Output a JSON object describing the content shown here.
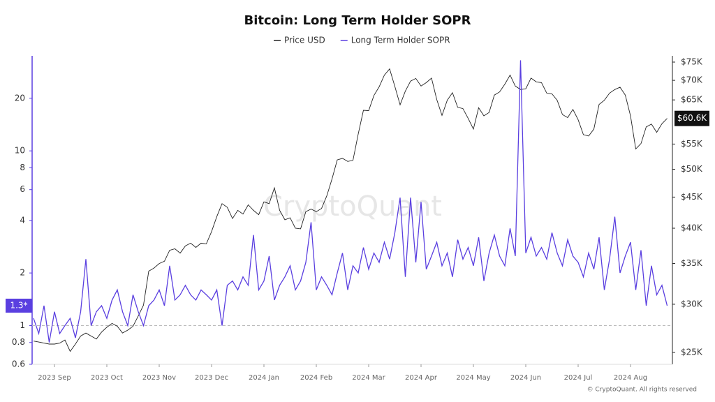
{
  "chart_data": {
    "type": "line",
    "title": "Bitcoin: Long Term Holder SOPR",
    "watermark": "CryptoQuant",
    "footer": "© CryptoQuant. All rights reserved",
    "categories": [
      null,
      null,
      null,
      null,
      "2023 Sep",
      null,
      null,
      null,
      null,
      null,
      null,
      null,
      null,
      null,
      "2023 Oct",
      null,
      null,
      null,
      null,
      null,
      null,
      null,
      null,
      null,
      "2023 Nov",
      null,
      null,
      null,
      null,
      null,
      null,
      null,
      null,
      null,
      "2023 Dec",
      null,
      null,
      null,
      null,
      null,
      null,
      null,
      null,
      null,
      "2024 Jan",
      null,
      null,
      null,
      null,
      null,
      null,
      null,
      null,
      null,
      "2024 Feb",
      null,
      null,
      null,
      null,
      null,
      null,
      null,
      null,
      null,
      "2024 Mar",
      null,
      null,
      null,
      null,
      null,
      null,
      null,
      null,
      null,
      "2024 Apr",
      null,
      null,
      null,
      null,
      null,
      null,
      null,
      null,
      null,
      "2024 May",
      null,
      null,
      null,
      null,
      null,
      null,
      null,
      null,
      null,
      "2024 Jun",
      null,
      null,
      null,
      null,
      null,
      null,
      null,
      null,
      null,
      "2024 Jul",
      null,
      null,
      null,
      null,
      null,
      null,
      null,
      null,
      null,
      "2024 Aug",
      null,
      null,
      null,
      null,
      null,
      null,
      null
    ],
    "series": [
      {
        "name": "Price USD",
        "color": "#222222",
        "axis": "y2",
        "last_label": "$60.6K",
        "values": [
          26100,
          26000,
          25900,
          25800,
          25800,
          25900,
          26200,
          25100,
          25800,
          26600,
          26900,
          26600,
          26300,
          27000,
          27500,
          27900,
          27600,
          26900,
          27200,
          27600,
          28700,
          29900,
          34000,
          34400,
          35000,
          35300,
          36800,
          37000,
          36400,
          37400,
          37800,
          37200,
          37800,
          37700,
          39500,
          41800,
          43900,
          43300,
          41500,
          42800,
          42200,
          43700,
          42800,
          42100,
          44200,
          43900,
          46600,
          42800,
          41300,
          41600,
          40000,
          39900,
          42600,
          43000,
          42600,
          43100,
          45200,
          48200,
          51800,
          52100,
          51500,
          51700,
          57100,
          62500,
          62400,
          66100,
          68300,
          71400,
          73100,
          68400,
          63800,
          67200,
          69800,
          70500,
          68500,
          69400,
          70600,
          65100,
          61300,
          64900,
          66800,
          63200,
          62900,
          60600,
          58200,
          63100,
          61200,
          62000,
          66200,
          67000,
          69000,
          71400,
          68500,
          67600,
          67800,
          70600,
          69600,
          69400,
          66700,
          66500,
          64900,
          61500,
          60800,
          62700,
          60300,
          57000,
          56700,
          58200,
          63900,
          64900,
          66700,
          67600,
          68200,
          66200,
          61200,
          54000,
          55100,
          58700,
          59300,
          57500,
          59400,
          60600
        ]
      },
      {
        "name": "Long Term Holder SOPR",
        "color": "#5a3fe0",
        "last_label": "1.3*",
        "values": [
          1.1,
          0.9,
          1.3,
          0.8,
          1.2,
          0.9,
          1.0,
          1.1,
          0.85,
          1.2,
          2.4,
          1.0,
          1.2,
          1.3,
          1.1,
          1.4,
          1.6,
          1.2,
          1.0,
          1.5,
          1.2,
          1.0,
          1.3,
          1.4,
          1.6,
          1.3,
          2.2,
          1.4,
          1.5,
          1.7,
          1.5,
          1.4,
          1.6,
          1.5,
          1.4,
          1.6,
          1.0,
          1.7,
          1.8,
          1.6,
          1.9,
          1.7,
          3.3,
          1.6,
          1.8,
          2.5,
          1.4,
          1.7,
          1.9,
          2.2,
          1.6,
          1.8,
          2.3,
          3.9,
          1.6,
          1.9,
          1.7,
          1.5,
          2.0,
          2.6,
          1.6,
          2.2,
          2.0,
          2.8,
          2.1,
          2.6,
          2.3,
          3.0,
          2.4,
          3.4,
          5.4,
          1.9,
          5.4,
          2.3,
          5.1,
          2.1,
          2.5,
          3.0,
          2.2,
          2.6,
          1.9,
          3.1,
          2.4,
          2.8,
          2.2,
          3.2,
          1.8,
          2.6,
          3.3,
          2.5,
          2.2,
          3.6,
          2.5,
          33,
          2.6,
          3.2,
          2.5,
          2.8,
          2.4,
          3.4,
          2.6,
          2.2,
          3.1,
          2.5,
          2.3,
          1.9,
          2.6,
          2.1,
          3.2,
          1.6,
          2.4,
          4.2,
          2.0,
          2.5,
          3.0,
          1.6,
          2.7,
          1.3,
          2.2,
          1.5,
          1.7,
          1.3
        ]
      }
    ],
    "ylim": [
      0.6,
      35
    ],
    "ylog": true,
    "yticks": [
      0.6,
      0.8,
      1,
      2,
      4,
      6,
      8,
      10,
      20
    ],
    "hline": 1,
    "y2lim": [
      23900,
      76800
    ],
    "y2log": true,
    "y2ticks": [
      {
        "value": 25000,
        "label": "$25K"
      },
      {
        "value": 30000,
        "label": "$30K"
      },
      {
        "value": 35000,
        "label": "$35K"
      },
      {
        "value": 40000,
        "label": "$40K"
      },
      {
        "value": 45000,
        "label": "$45K"
      },
      {
        "value": 50000,
        "label": "$50K"
      },
      {
        "value": 55000,
        "label": "$55K"
      },
      {
        "value": 65000,
        "label": "$65K"
      },
      {
        "value": 70000,
        "label": "$70K"
      },
      {
        "value": 75000,
        "label": "$75K"
      }
    ]
  }
}
